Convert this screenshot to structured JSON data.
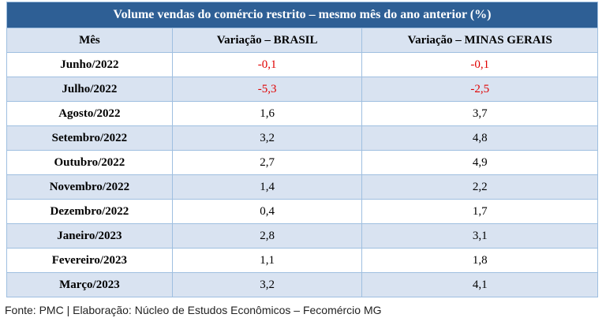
{
  "title": "Volume vendas do comércio restrito – mesmo mês do ano anterior (%)",
  "table": {
    "header": [
      "Mês",
      "Variação – BRASIL",
      "Variação – MINAS GERAIS"
    ],
    "rows": [
      [
        "Junho/2022",
        "-0,1",
        "-0,1"
      ],
      [
        "Julho/2022",
        "-5,3",
        "-2,5"
      ],
      [
        "Agosto/2022",
        "1,6",
        "3,7"
      ],
      [
        "Setembro/2022",
        "3,2",
        "4,8"
      ],
      [
        "Outubro/2022",
        "2,7",
        "4,9"
      ],
      [
        "Novembro/2022",
        "1,4",
        "2,2"
      ],
      [
        "Dezembro/2022",
        "0,4",
        "1,7"
      ],
      [
        "Janeiro/2023",
        "2,8",
        "3,1"
      ],
      [
        "Fevereiro/2023",
        "1,1",
        "1,8"
      ],
      [
        "Março/2023",
        "3,2",
        "4,1"
      ]
    ]
  },
  "footer": "Fonte: PMC | Elaboração: Núcleo de Estudos Econômicos – Fecomércio MG"
}
